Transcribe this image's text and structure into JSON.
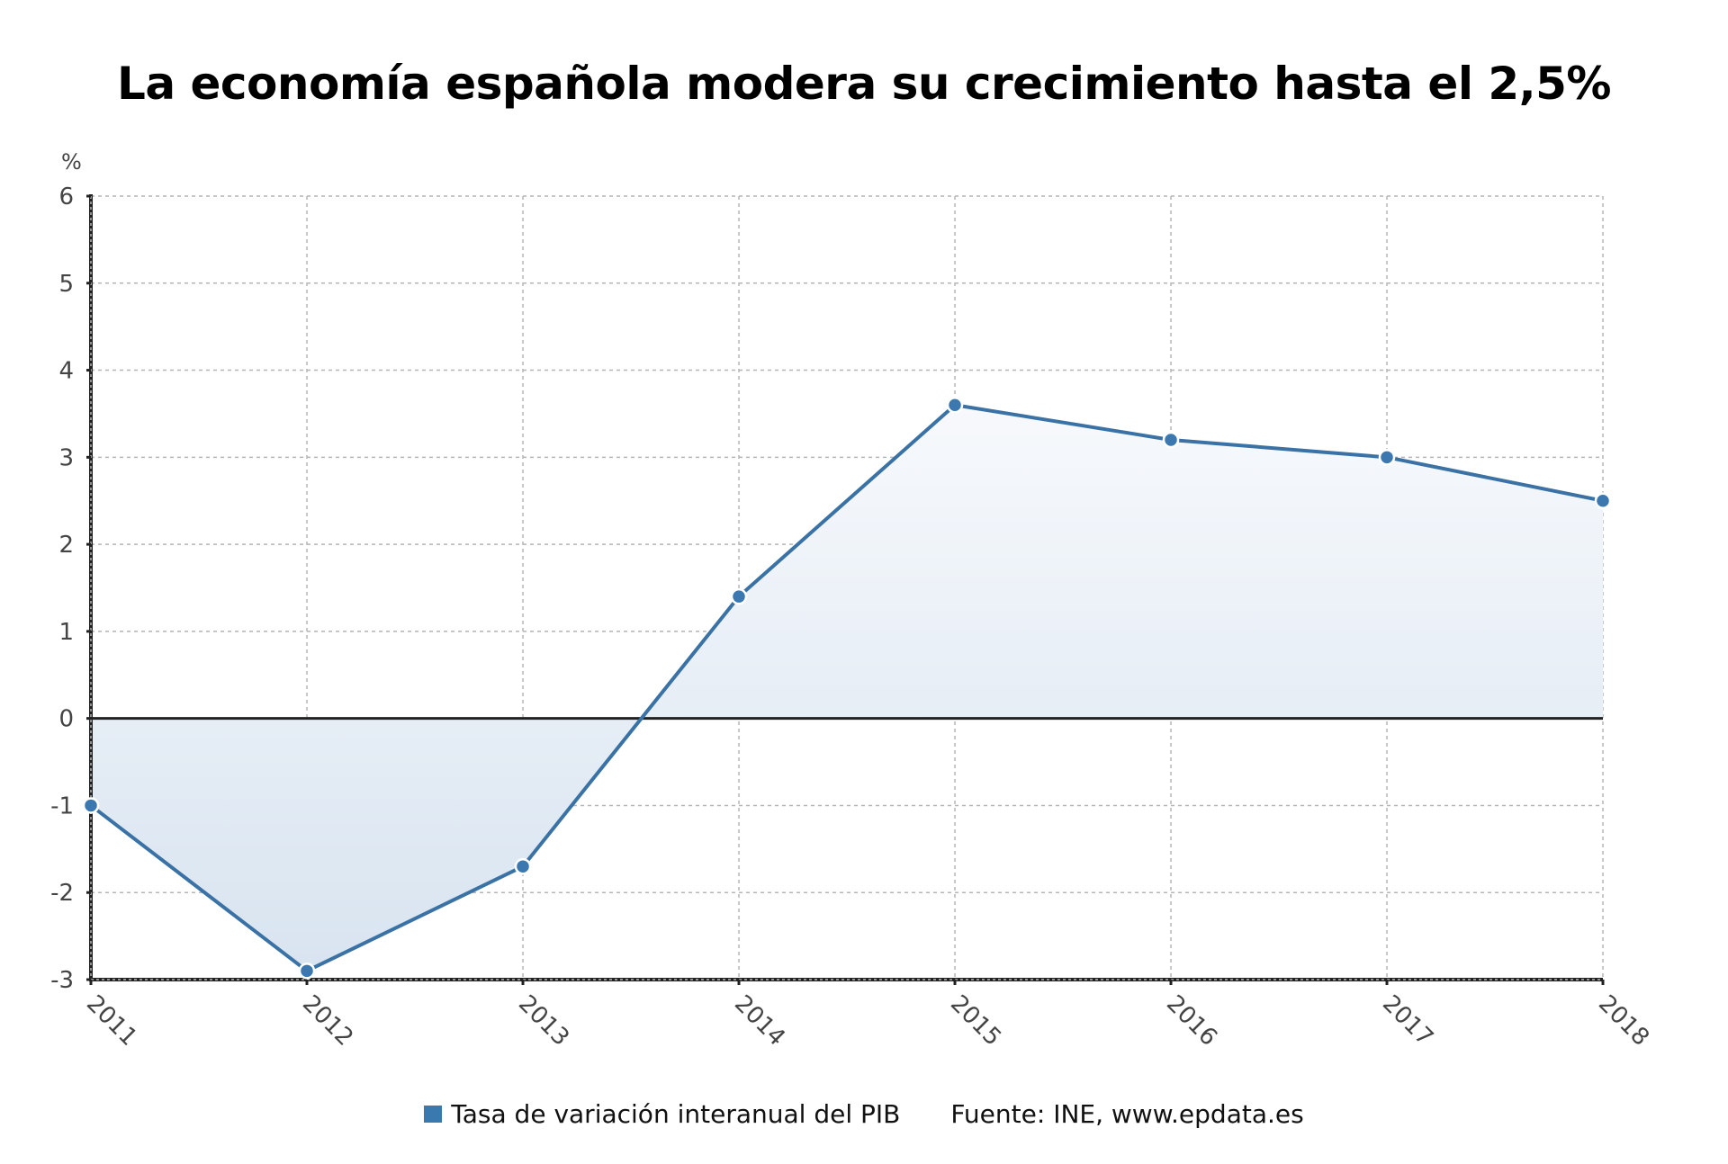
{
  "title": "La economía española modera su crecimiento hasta el 2,5%",
  "y_unit": "%",
  "colors": {
    "line": "#3a72a6",
    "marker": "#3b78b0",
    "fill_top": "#f7f9fc",
    "fill_bottom": "#d8e4f0",
    "grid": "#b5b5b5",
    "axis": "#222222",
    "tick_label": "#444444"
  },
  "legend": {
    "series_label": "Tasa de variación interanual del PIB",
    "series_color": "#3a78b0",
    "source": "Fuente: INE, www.epdata.es"
  },
  "chart_data": {
    "type": "area",
    "title": "La economía española moderа su crecimiento hasta el 2,5%",
    "xlabel": "",
    "ylabel": "%",
    "categories": [
      "2011",
      "2012",
      "2013",
      "2014",
      "2015",
      "2016",
      "2017",
      "2018"
    ],
    "series": [
      {
        "name": "Tasa de variación interanual del PIB",
        "values": [
          -1.0,
          -2.9,
          -1.7,
          1.4,
          3.6,
          3.2,
          3.0,
          2.5
        ]
      }
    ],
    "ylim": [
      -3,
      6
    ],
    "yticks": [
      6,
      5,
      4,
      3,
      2,
      1,
      0,
      -1,
      -2,
      -3
    ],
    "grid": true,
    "legend_position": "bottom",
    "annotations": [
      "Fuente: INE, www.epdata.es"
    ]
  }
}
